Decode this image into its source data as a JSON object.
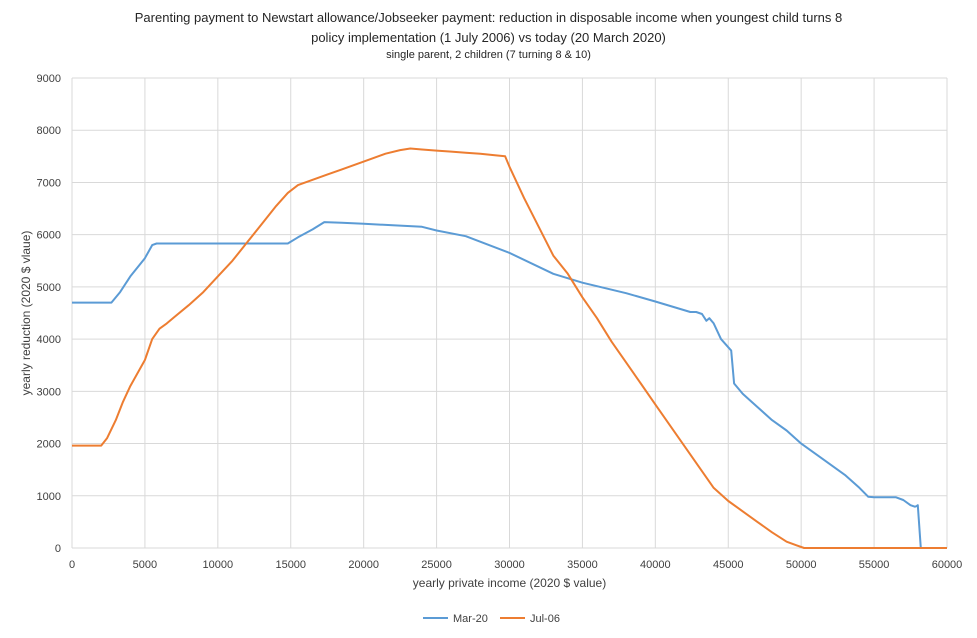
{
  "chart_data": {
    "type": "line",
    "title": "Parenting payment to Newstart allowance/Jobseeker payment: reduction in disposable income when youngest child turns 8",
    "subtitle": "policy implementation (1 July 2006) vs today (20 March 2020)",
    "subtitle2": "single parent, 2 children (7 turning 8 & 10)",
    "xlabel": "yearly private income (2020 $ value)",
    "ylabel": "yearly reduction (2020 $ vlaue)",
    "xlim": [
      0,
      60000
    ],
    "ylim": [
      0,
      9000
    ],
    "xticks": [
      0,
      5000,
      10000,
      15000,
      20000,
      25000,
      30000,
      35000,
      40000,
      45000,
      50000,
      55000,
      60000
    ],
    "yticks": [
      0,
      1000,
      2000,
      3000,
      4000,
      5000,
      6000,
      7000,
      8000,
      9000
    ],
    "grid": true,
    "legend": "bottom",
    "series": [
      {
        "name": "Mar-20",
        "color": "#5b9bd5",
        "x": [
          0,
          2700,
          3300,
          4000,
          5000,
          5500,
          5800,
          6000,
          10000,
          14800,
          15500,
          16500,
          17300,
          18500,
          20000,
          22000,
          24000,
          25000,
          27000,
          30000,
          33000,
          35000,
          38000,
          40000,
          42400,
          42800,
          43200,
          43500,
          43700,
          44000,
          44500,
          45200,
          45400,
          46000,
          47000,
          48000,
          49000,
          50000,
          51500,
          53000,
          54000,
          54600,
          55000,
          56500,
          57000,
          57500,
          57800,
          57900,
          58000,
          58200,
          60000
        ],
        "y": [
          4700,
          4700,
          4900,
          5200,
          5550,
          5800,
          5830,
          5830,
          5830,
          5830,
          5950,
          6100,
          6240,
          6230,
          6210,
          6180,
          6150,
          6080,
          5970,
          5650,
          5250,
          5080,
          4880,
          4720,
          4520,
          4520,
          4480,
          4350,
          4400,
          4300,
          4000,
          3780,
          3150,
          2950,
          2700,
          2450,
          2250,
          2000,
          1700,
          1400,
          1150,
          980,
          970,
          970,
          920,
          820,
          790,
          800,
          820,
          0,
          0
        ]
      },
      {
        "name": "Jul-06",
        "color": "#ed7d31",
        "x": [
          0,
          2000,
          2400,
          3000,
          3500,
          4000,
          5000,
          5500,
          6000,
          6500,
          7000,
          8000,
          9000,
          10000,
          11000,
          12000,
          13000,
          14000,
          14800,
          15500,
          16500,
          17500,
          18500,
          19500,
          20500,
          21500,
          22500,
          23200,
          24000,
          25000,
          26000,
          27000,
          28000,
          29000,
          29700,
          30000,
          31000,
          32000,
          33000,
          34000,
          35000,
          36000,
          37000,
          38000,
          39000,
          40000,
          41000,
          42000,
          43000,
          44000,
          45000,
          46000,
          47000,
          48000,
          49000,
          49700,
          50200,
          50600,
          51000,
          60000
        ],
        "y": [
          1960,
          1960,
          2100,
          2450,
          2800,
          3100,
          3600,
          4000,
          4200,
          4300,
          4420,
          4650,
          4900,
          5200,
          5500,
          5850,
          6200,
          6550,
          6800,
          6950,
          7050,
          7150,
          7250,
          7350,
          7450,
          7550,
          7620,
          7650,
          7630,
          7610,
          7590,
          7570,
          7550,
          7520,
          7500,
          7300,
          6700,
          6150,
          5600,
          5250,
          4800,
          4400,
          3950,
          3550,
          3150,
          2750,
          2350,
          1950,
          1550,
          1150,
          900,
          700,
          500,
          300,
          120,
          50,
          0,
          0,
          0,
          0
        ]
      }
    ]
  }
}
